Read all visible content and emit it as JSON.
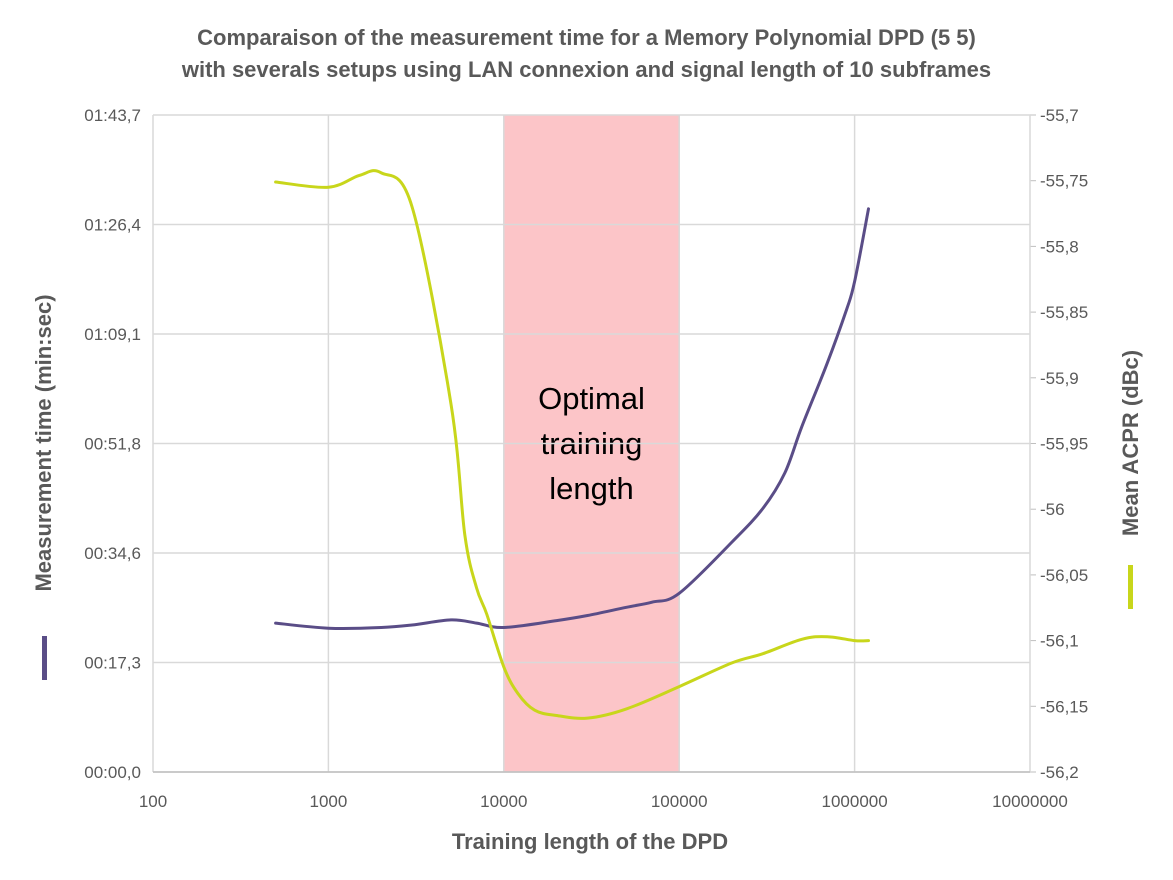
{
  "chart_data": {
    "type": "line",
    "title_line1": "Comparaison of the measurement time for a Memory Polynomial DPD (5 5)",
    "title_line2": "with severals setups using LAN connexion and signal length of 10 subframes",
    "xlabel": "Training length of the DPD",
    "ylabel_left": "Measurement time (min:sec)",
    "ylabel_right": "Mean ACPR (dBc)",
    "x_scale": "log",
    "xlim": [
      100,
      10000000
    ],
    "x_ticks": [
      "100",
      "1000",
      "10000",
      "100000",
      "1000000",
      "10000000"
    ],
    "y_left_ticks": [
      "00:00,0",
      "00:17,3",
      "00:34,6",
      "00:51,8",
      "01:09,1",
      "01:26,4",
      "01:43,7"
    ],
    "y_left_range_seconds": [
      0,
      103.7
    ],
    "y_right_ticks": [
      "-56,2",
      "-56,15",
      "-56,1",
      "-56,05",
      "-56",
      "-55,95",
      "-55,9",
      "-55,85",
      "-55,8",
      "-55,75",
      "-55,7"
    ],
    "y_right_range": [
      -56.2,
      -55.7
    ],
    "grid": true,
    "annotation": {
      "lines": [
        "Optimal",
        "training",
        "length"
      ],
      "x_from": 10000,
      "x_to": 100000,
      "color": "#fcc5c8"
    },
    "series": [
      {
        "axis": "left",
        "color": "#5a4d87",
        "x": [
          500,
          1000,
          2000,
          3000,
          5000,
          7000,
          10000,
          20000,
          30000,
          50000,
          70000,
          100000,
          200000,
          300000,
          400000,
          500000,
          700000,
          900000,
          1000000,
          1200000
        ],
        "y": [
          23.5,
          22.7,
          22.8,
          23.2,
          24.0,
          23.5,
          22.8,
          23.9,
          24.7,
          26.0,
          26.8,
          28.2,
          36.3,
          41.6,
          47.2,
          54.5,
          64.6,
          73.0,
          77.4,
          88.9
        ]
      },
      {
        "axis": "right",
        "color": "#c8d61b",
        "x": [
          500,
          1000,
          1500,
          2000,
          3000,
          5000,
          6000,
          7000,
          8000,
          10000,
          12000,
          15000,
          20000,
          30000,
          50000,
          100000,
          200000,
          300000,
          500000,
          700000,
          1000000,
          1200000
        ],
        "y": [
          -55.751,
          -55.755,
          -55.746,
          -55.744,
          -55.77,
          -55.92,
          -56.02,
          -56.06,
          -56.08,
          -56.12,
          -56.14,
          -56.153,
          -56.157,
          -56.159,
          -56.152,
          -56.135,
          -56.117,
          -56.11,
          -56.099,
          -56.097,
          -56.1,
          -56.1
        ]
      }
    ]
  }
}
